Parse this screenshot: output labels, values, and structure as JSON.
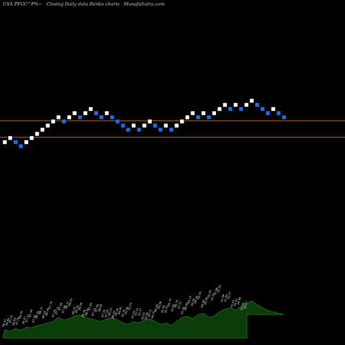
{
  "header": {
    "symbol": "USA PFGC^P%~",
    "description": "Closing Daily data  Renko  charts",
    "site": "MunafaSutra.com"
  },
  "colors": {
    "background": "#000000",
    "up_brick": "#ffffff",
    "down_brick": "#1e6fe6",
    "level_line": "#c8641e",
    "volume_area": "#0b3d0b",
    "volume_line": "#1a7a1a",
    "volume_label": "#dddddd"
  },
  "chart_data": {
    "type": "renko",
    "level_lines": [
      "upper",
      "lower"
    ],
    "bricks": [
      {
        "dir": "up",
        "level": 4
      },
      {
        "dir": "up",
        "level": 5
      },
      {
        "dir": "down",
        "level": 4
      },
      {
        "dir": "down",
        "level": 3
      },
      {
        "dir": "up",
        "level": 4
      },
      {
        "dir": "up",
        "level": 5
      },
      {
        "dir": "up",
        "level": 6
      },
      {
        "dir": "up",
        "level": 7
      },
      {
        "dir": "up",
        "level": 8
      },
      {
        "dir": "up",
        "level": 9
      },
      {
        "dir": "up",
        "level": 10
      },
      {
        "dir": "down",
        "level": 9
      },
      {
        "dir": "up",
        "level": 10
      },
      {
        "dir": "up",
        "level": 11
      },
      {
        "dir": "down",
        "level": 10
      },
      {
        "dir": "up",
        "level": 11
      },
      {
        "dir": "up",
        "level": 12
      },
      {
        "dir": "down",
        "level": 11
      },
      {
        "dir": "down",
        "level": 10
      },
      {
        "dir": "up",
        "level": 11
      },
      {
        "dir": "down",
        "level": 10
      },
      {
        "dir": "down",
        "level": 9
      },
      {
        "dir": "down",
        "level": 8
      },
      {
        "dir": "down",
        "level": 7
      },
      {
        "dir": "up",
        "level": 8
      },
      {
        "dir": "down",
        "level": 7
      },
      {
        "dir": "up",
        "level": 8
      },
      {
        "dir": "up",
        "level": 9
      },
      {
        "dir": "down",
        "level": 8
      },
      {
        "dir": "down",
        "level": 7
      },
      {
        "dir": "up",
        "level": 8
      },
      {
        "dir": "down",
        "level": 7
      },
      {
        "dir": "up",
        "level": 8
      },
      {
        "dir": "up",
        "level": 9
      },
      {
        "dir": "up",
        "level": 10
      },
      {
        "dir": "up",
        "level": 11
      },
      {
        "dir": "down",
        "level": 10
      },
      {
        "dir": "up",
        "level": 11
      },
      {
        "dir": "down",
        "level": 10
      },
      {
        "dir": "up",
        "level": 11
      },
      {
        "dir": "up",
        "level": 12
      },
      {
        "dir": "up",
        "level": 13
      },
      {
        "dir": "down",
        "level": 12
      },
      {
        "dir": "up",
        "level": 13
      },
      {
        "dir": "down",
        "level": 12
      },
      {
        "dir": "up",
        "level": 13
      },
      {
        "dir": "up",
        "level": 14
      },
      {
        "dir": "down",
        "level": 13
      },
      {
        "dir": "down",
        "level": 12
      },
      {
        "dir": "down",
        "level": 11
      },
      {
        "dir": "up",
        "level": 12
      },
      {
        "dir": "down",
        "level": 11
      },
      {
        "dir": "down",
        "level": 10
      }
    ],
    "volume": [
      12,
      10,
      14,
      11,
      16,
      15,
      18,
      20,
      22,
      24,
      30,
      26,
      28,
      32,
      34,
      30,
      28,
      26,
      24,
      28,
      30,
      26,
      22,
      20,
      24,
      22,
      26,
      28,
      24,
      20,
      22,
      18,
      24,
      30,
      32,
      28,
      34,
      36,
      30,
      32,
      38,
      42,
      44,
      40,
      46,
      50,
      54,
      48,
      44,
      40,
      38,
      36,
      34
    ],
    "volume_labels": [
      "86.41",
      "84.84",
      "85.29",
      "86.83",
      "87.06",
      "86.39",
      "86.97",
      "87.57",
      "87.49",
      "87.58",
      "88.09",
      "88.31",
      "88.54",
      "88.49",
      "87.79",
      "87.28",
      "87.03",
      "87.68",
      "87.96",
      "88.37",
      "88.29",
      "88.26",
      "88.38",
      "88.08",
      "88.46",
      "88.94",
      "87.69",
      "87.13",
      "87.65",
      "88.06",
      "87.26",
      "87.93",
      "88.13",
      "88.34",
      "89.46",
      "89.85",
      "90.78",
      "90.98",
      "91.24",
      "91.59",
      "91.74",
      "91.07",
      "90.61",
      "90.98",
      "90.72",
      "90.45",
      "89.84",
      "89.86",
      "90.38",
      "90.93",
      "90.78",
      "90.80",
      "89.76",
      "91.52",
      "91.48",
      "89.88",
      "89.15",
      "88.56",
      "89.26",
      "90.09",
      "89.98",
      "89.80",
      "90.06",
      "91.41",
      "91.86",
      "92.81",
      "91.98",
      "91.84",
      "91.37",
      "91.63",
      "90.92",
      "90.86",
      "91.06",
      "90.67"
    ]
  }
}
